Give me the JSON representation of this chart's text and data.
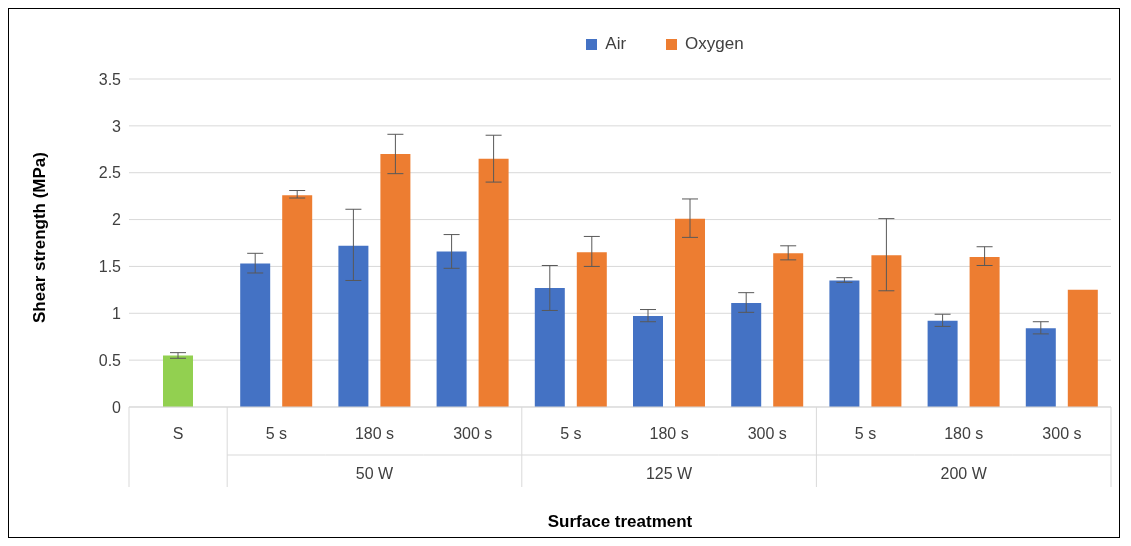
{
  "chart_data": {
    "type": "bar",
    "xlabel": "Surface treatment",
    "ylabel": "Shear strength (MPa)",
    "categories": [
      "S",
      "5 s",
      "180 s",
      "300 s",
      "5 s",
      "180 s",
      "300 s",
      "5 s",
      "180 s",
      "300 s"
    ],
    "annotations": [
      "50 W",
      "125 W",
      "200 W"
    ],
    "series": [
      {
        "color": "#92d050",
        "values": [
          0.55,
          null,
          null,
          null,
          null,
          null,
          null,
          null,
          null,
          null
        ],
        "errors": [
          [
            0.52,
            0.58
          ],
          null,
          null,
          null,
          null,
          null,
          null,
          null,
          null,
          null
        ]
      },
      {
        "name": "Air",
        "color": "#4472c4",
        "values": [
          null,
          1.53,
          1.72,
          1.66,
          1.27,
          0.97,
          1.11,
          1.35,
          0.92,
          0.84
        ],
        "errors": [
          null,
          [
            1.43,
            1.64
          ],
          [
            1.35,
            2.11
          ],
          [
            1.48,
            1.84
          ],
          [
            1.03,
            1.51
          ],
          [
            0.91,
            1.04
          ],
          [
            1.01,
            1.22
          ],
          [
            1.33,
            1.38
          ],
          [
            0.86,
            0.99
          ],
          [
            0.78,
            0.91
          ]
        ]
      },
      {
        "name": "Oxygen",
        "color": "#ed7d31",
        "values": [
          null,
          2.26,
          2.7,
          2.65,
          1.65,
          2.01,
          1.64,
          1.62,
          1.6,
          1.25
        ],
        "errors": [
          null,
          [
            2.23,
            2.31
          ],
          [
            2.49,
            2.91
          ],
          [
            2.4,
            2.9
          ],
          [
            1.5,
            1.82
          ],
          [
            1.81,
            2.22
          ],
          [
            1.57,
            1.72
          ],
          [
            1.24,
            2.01
          ],
          [
            1.51,
            1.71
          ],
          null
        ]
      }
    ],
    "ylim": [
      0,
      3.5
    ],
    "yticks": [
      0,
      0.5,
      1,
      1.5,
      2,
      2.5,
      3,
      3.5
    ],
    "grid": "y",
    "legend": "top"
  }
}
